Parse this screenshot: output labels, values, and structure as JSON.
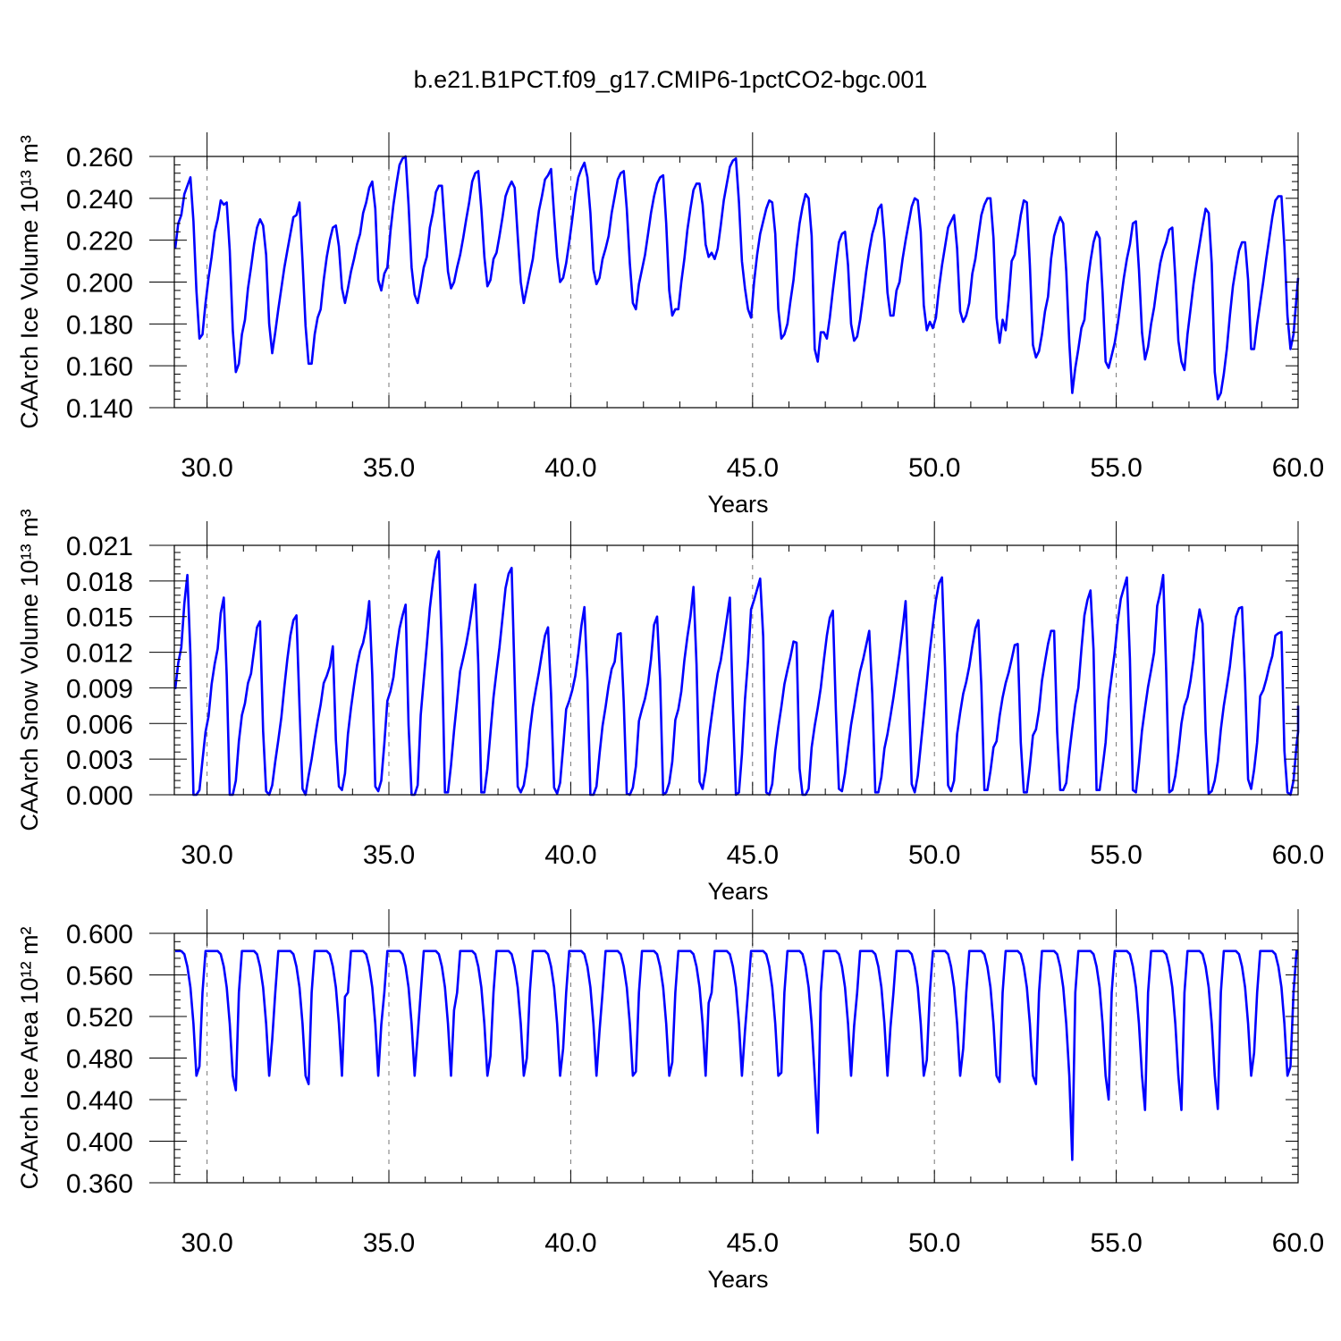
{
  "figure": {
    "title": "b.e21.B1PCT.f09_g17.CMIP6-1pctCO2-bgc.001"
  },
  "style": {
    "line_color": "#0000ff"
  },
  "chart_data": [
    {
      "type": "line",
      "xlabel": "Years",
      "ylabel": "CAArch Ice Volume 10¹³ m³",
      "xlim": [
        29.1,
        60.0
      ],
      "ylim": [
        0.14,
        0.26
      ],
      "xticks": [
        "30.0",
        "35.0",
        "40.0",
        "45.0",
        "50.0",
        "55.0",
        "60.0"
      ],
      "yticks": [
        "0.140",
        "0.160",
        "0.180",
        "0.200",
        "0.220",
        "0.240",
        "0.260"
      ],
      "grid_x": true,
      "series": [
        {
          "x_start": 29.125,
          "x_step": 0.0833333,
          "values": [
            0.216,
            0.228,
            0.232,
            0.242,
            0.246,
            0.25,
            0.229,
            0.196,
            0.173,
            0.175,
            0.19,
            0.202,
            0.212,
            0.224,
            0.23,
            0.239,
            0.237,
            0.238,
            0.215,
            0.177,
            0.157,
            0.161,
            0.175,
            0.182,
            0.197,
            0.207,
            0.218,
            0.226,
            0.23,
            0.227,
            0.213,
            0.18,
            0.166,
            0.176,
            0.187,
            0.197,
            0.207,
            0.215,
            0.223,
            0.231,
            0.232,
            0.238,
            0.21,
            0.179,
            0.161,
            0.161,
            0.175,
            0.183,
            0.187,
            0.201,
            0.212,
            0.22,
            0.226,
            0.227,
            0.217,
            0.197,
            0.19,
            0.197,
            0.205,
            0.211,
            0.218,
            0.223,
            0.233,
            0.238,
            0.245,
            0.248,
            0.235,
            0.201,
            0.196,
            0.204,
            0.207,
            0.224,
            0.237,
            0.247,
            0.256,
            0.259,
            0.26,
            0.237,
            0.207,
            0.194,
            0.19,
            0.198,
            0.207,
            0.212,
            0.226,
            0.233,
            0.243,
            0.246,
            0.246,
            0.225,
            0.205,
            0.197,
            0.2,
            0.207,
            0.213,
            0.221,
            0.23,
            0.238,
            0.248,
            0.252,
            0.253,
            0.235,
            0.212,
            0.198,
            0.201,
            0.211,
            0.214,
            0.222,
            0.231,
            0.241,
            0.245,
            0.248,
            0.245,
            0.222,
            0.2,
            0.19,
            0.197,
            0.204,
            0.211,
            0.223,
            0.234,
            0.241,
            0.249,
            0.251,
            0.254,
            0.232,
            0.212,
            0.2,
            0.202,
            0.209,
            0.219,
            0.23,
            0.242,
            0.25,
            0.254,
            0.257,
            0.25,
            0.233,
            0.206,
            0.199,
            0.202,
            0.211,
            0.216,
            0.222,
            0.233,
            0.241,
            0.249,
            0.252,
            0.253,
            0.235,
            0.209,
            0.19,
            0.187,
            0.199,
            0.206,
            0.213,
            0.223,
            0.233,
            0.241,
            0.247,
            0.25,
            0.251,
            0.228,
            0.196,
            0.184,
            0.187,
            0.187,
            0.2,
            0.211,
            0.225,
            0.235,
            0.244,
            0.247,
            0.247,
            0.237,
            0.218,
            0.212,
            0.214,
            0.211,
            0.216,
            0.227,
            0.239,
            0.247,
            0.255,
            0.258,
            0.259,
            0.238,
            0.21,
            0.197,
            0.187,
            0.183,
            0.2,
            0.213,
            0.223,
            0.229,
            0.235,
            0.239,
            0.238,
            0.223,
            0.187,
            0.173,
            0.175,
            0.18,
            0.191,
            0.201,
            0.216,
            0.228,
            0.236,
            0.242,
            0.24,
            0.222,
            0.168,
            0.162,
            0.176,
            0.176,
            0.173,
            0.183,
            0.196,
            0.208,
            0.219,
            0.223,
            0.224,
            0.208,
            0.18,
            0.172,
            0.174,
            0.182,
            0.193,
            0.205,
            0.215,
            0.223,
            0.228,
            0.235,
            0.237,
            0.22,
            0.195,
            0.184,
            0.184,
            0.196,
            0.2,
            0.211,
            0.22,
            0.228,
            0.236,
            0.24,
            0.239,
            0.224,
            0.189,
            0.177,
            0.181,
            0.178,
            0.183,
            0.197,
            0.208,
            0.217,
            0.226,
            0.229,
            0.232,
            0.216,
            0.186,
            0.181,
            0.184,
            0.19,
            0.204,
            0.211,
            0.222,
            0.232,
            0.237,
            0.24,
            0.24,
            0.221,
            0.183,
            0.171,
            0.182,
            0.177,
            0.192,
            0.21,
            0.213,
            0.222,
            0.232,
            0.239,
            0.238,
            0.208,
            0.17,
            0.164,
            0.167,
            0.175,
            0.186,
            0.193,
            0.211,
            0.222,
            0.227,
            0.231,
            0.228,
            0.205,
            0.171,
            0.147,
            0.159,
            0.168,
            0.178,
            0.182,
            0.199,
            0.21,
            0.219,
            0.224,
            0.221,
            0.195,
            0.162,
            0.159,
            0.165,
            0.171,
            0.18,
            0.191,
            0.202,
            0.211,
            0.218,
            0.228,
            0.229,
            0.206,
            0.176,
            0.163,
            0.169,
            0.18,
            0.188,
            0.199,
            0.209,
            0.215,
            0.219,
            0.225,
            0.226,
            0.202,
            0.172,
            0.162,
            0.158,
            0.175,
            0.187,
            0.199,
            0.209,
            0.218,
            0.227,
            0.235,
            0.233,
            0.209,
            0.157,
            0.144,
            0.147,
            0.156,
            0.168,
            0.184,
            0.198,
            0.207,
            0.215,
            0.219,
            0.219,
            0.201,
            0.168,
            0.168,
            0.18,
            0.19,
            0.2,
            0.211,
            0.221,
            0.231,
            0.239,
            0.241,
            0.241,
            0.217,
            0.184,
            0.168,
            0.175,
            0.193,
            0.202
          ]
        }
      ]
    },
    {
      "type": "line",
      "xlabel": "Years",
      "ylabel": "CAArch Snow Volume 10¹³ m³",
      "xlim": [
        29.1,
        60.0
      ],
      "ylim": [
        0.0,
        0.021
      ],
      "xticks": [
        "30.0",
        "35.0",
        "40.0",
        "45.0",
        "50.0",
        "55.0",
        "60.0"
      ],
      "yticks": [
        "0.000",
        "0.003",
        "0.006",
        "0.009",
        "0.012",
        "0.015",
        "0.018",
        "0.021"
      ],
      "grid_x": true,
      "series": [
        {
          "x_start": 29.125,
          "x_step": 0.0833333,
          "values": [
            0.0089,
            0.0111,
            0.0124,
            0.0161,
            0.0185,
            0.0118,
            0.0,
            0.0,
            0.0004,
            0.0029,
            0.0053,
            0.0066,
            0.0093,
            0.011,
            0.0123,
            0.0153,
            0.0166,
            0.01,
            0.0,
            0.0,
            0.0012,
            0.0045,
            0.0067,
            0.0077,
            0.0094,
            0.0102,
            0.0122,
            0.0141,
            0.0146,
            0.0054,
            0.0003,
            0.0,
            0.0008,
            0.0028,
            0.0046,
            0.0065,
            0.0091,
            0.0114,
            0.0134,
            0.0147,
            0.0151,
            0.0075,
            0.0005,
            0.0,
            0.0016,
            0.003,
            0.0047,
            0.0062,
            0.0076,
            0.0094,
            0.01,
            0.0108,
            0.0125,
            0.0046,
            0.0007,
            0.0004,
            0.0018,
            0.0051,
            0.0073,
            0.0092,
            0.0109,
            0.0121,
            0.0128,
            0.0141,
            0.0163,
            0.0101,
            0.0007,
            0.0003,
            0.0012,
            0.0043,
            0.0079,
            0.0087,
            0.0099,
            0.0122,
            0.014,
            0.0151,
            0.016,
            0.0059,
            0.0,
            0.0,
            0.0008,
            0.0067,
            0.0097,
            0.0126,
            0.0157,
            0.0179,
            0.0198,
            0.0205,
            0.0122,
            0.0002,
            0.0002,
            0.0025,
            0.0054,
            0.0079,
            0.0104,
            0.0115,
            0.0127,
            0.0141,
            0.0158,
            0.0177,
            0.011,
            0.0002,
            0.0002,
            0.0022,
            0.0052,
            0.0082,
            0.0104,
            0.0124,
            0.0149,
            0.0174,
            0.0186,
            0.0191,
            0.0098,
            0.0007,
            0.0002,
            0.0008,
            0.0024,
            0.0053,
            0.0074,
            0.0089,
            0.0103,
            0.0119,
            0.0134,
            0.0141,
            0.0085,
            0.0006,
            0.0001,
            0.001,
            0.004,
            0.0072,
            0.0079,
            0.0088,
            0.01,
            0.0119,
            0.0142,
            0.0158,
            0.0096,
            0.0,
            0.0,
            0.0007,
            0.0034,
            0.0058,
            0.0074,
            0.0092,
            0.0106,
            0.0112,
            0.0135,
            0.0136,
            0.0078,
            0.0001,
            0.0,
            0.0006,
            0.0024,
            0.0062,
            0.0072,
            0.0081,
            0.0094,
            0.0114,
            0.0143,
            0.015,
            0.0097,
            0.0,
            0.0002,
            0.001,
            0.0028,
            0.0063,
            0.0072,
            0.0087,
            0.0113,
            0.0133,
            0.015,
            0.0175,
            0.011,
            0.0011,
            0.0005,
            0.002,
            0.0047,
            0.0066,
            0.0085,
            0.0102,
            0.0113,
            0.013,
            0.0148,
            0.0166,
            0.0074,
            0.0,
            0.0002,
            0.0034,
            0.008,
            0.0113,
            0.0156,
            0.0164,
            0.0173,
            0.0182,
            0.0133,
            0.0002,
            0.0,
            0.0009,
            0.0037,
            0.0057,
            0.0074,
            0.0093,
            0.0105,
            0.0116,
            0.0129,
            0.0128,
            0.0022,
            0.0,
            0.0,
            0.0005,
            0.004,
            0.0058,
            0.0073,
            0.009,
            0.0113,
            0.0134,
            0.0149,
            0.0155,
            0.0071,
            0.0005,
            0.0003,
            0.0018,
            0.0039,
            0.0059,
            0.0074,
            0.009,
            0.0104,
            0.0114,
            0.0126,
            0.0138,
            0.0085,
            0.0002,
            0.0002,
            0.0015,
            0.0039,
            0.0051,
            0.0066,
            0.0082,
            0.01,
            0.0119,
            0.014,
            0.0163,
            0.009,
            0.0009,
            0.0002,
            0.0016,
            0.0041,
            0.0067,
            0.0094,
            0.0121,
            0.0143,
            0.0164,
            0.0178,
            0.0183,
            0.0107,
            0.0008,
            0.0003,
            0.0012,
            0.0051,
            0.0069,
            0.0085,
            0.0095,
            0.0108,
            0.0125,
            0.014,
            0.0147,
            0.0092,
            0.0004,
            0.0004,
            0.002,
            0.004,
            0.0045,
            0.0066,
            0.0082,
            0.0094,
            0.0103,
            0.0114,
            0.0126,
            0.0127,
            0.0044,
            0.0002,
            0.0002,
            0.0024,
            0.005,
            0.0055,
            0.0071,
            0.0096,
            0.0112,
            0.0127,
            0.0138,
            0.0138,
            0.0053,
            0.0004,
            0.0004,
            0.001,
            0.0035,
            0.0056,
            0.0076,
            0.009,
            0.0122,
            0.0151,
            0.0164,
            0.0172,
            0.0122,
            0.0004,
            0.0004,
            0.0023,
            0.0044,
            0.008,
            0.01,
            0.012,
            0.0146,
            0.0165,
            0.0174,
            0.0183,
            0.0114,
            0.0004,
            0.0002,
            0.0026,
            0.0054,
            0.0073,
            0.0091,
            0.0105,
            0.012,
            0.0159,
            0.017,
            0.0185,
            0.0103,
            0.0002,
            0.0004,
            0.0016,
            0.0036,
            0.006,
            0.0075,
            0.0082,
            0.0096,
            0.0114,
            0.0139,
            0.0156,
            0.0144,
            0.0053,
            0.0001,
            0.0003,
            0.0012,
            0.0028,
            0.0055,
            0.0075,
            0.0091,
            0.0108,
            0.0131,
            0.015,
            0.0157,
            0.0158,
            0.0096,
            0.0013,
            0.0005,
            0.0021,
            0.0044,
            0.0083,
            0.0088,
            0.0097,
            0.0108,
            0.0117,
            0.0134,
            0.0136,
            0.0137,
            0.0037,
            0.0002,
            0.0,
            0.0012,
            0.0042,
            0.0053,
            0.0075
          ]
        }
      ]
    },
    {
      "type": "line",
      "xlabel": "Years",
      "ylabel": "CAArch Ice Area 10¹² m²",
      "xlim": [
        29.1,
        60.0
      ],
      "ylim": [
        0.36,
        0.6
      ],
      "xticks": [
        "30.0",
        "35.0",
        "40.0",
        "45.0",
        "50.0",
        "55.0",
        "60.0"
      ],
      "yticks": [
        "0.360",
        "0.400",
        "0.440",
        "0.480",
        "0.520",
        "0.560",
        "0.600"
      ],
      "grid_x": true,
      "annual_min": [
        0.472,
        0.449,
        0.498,
        0.455,
        0.539,
        0.512,
        0.502,
        0.526,
        0.482,
        0.48,
        0.489,
        0.506,
        0.467,
        0.476,
        0.533,
        0.506,
        0.466,
        0.408,
        0.511,
        0.509,
        0.478,
        0.489,
        0.457,
        0.455,
        0.382,
        0.44,
        0.43,
        0.43,
        0.431,
        0.485,
        0.472
      ],
      "series": [
        {
          "x_start": 29.125,
          "x_step": 0.0833333,
          "pattern_offsets": [
            0,
            0,
            0,
            0.003,
            0.015,
            0.035,
            0.07,
            0.12,
            "min",
            0.04,
            0,
            0
          ],
          "peak": 0.583
        }
      ]
    }
  ]
}
